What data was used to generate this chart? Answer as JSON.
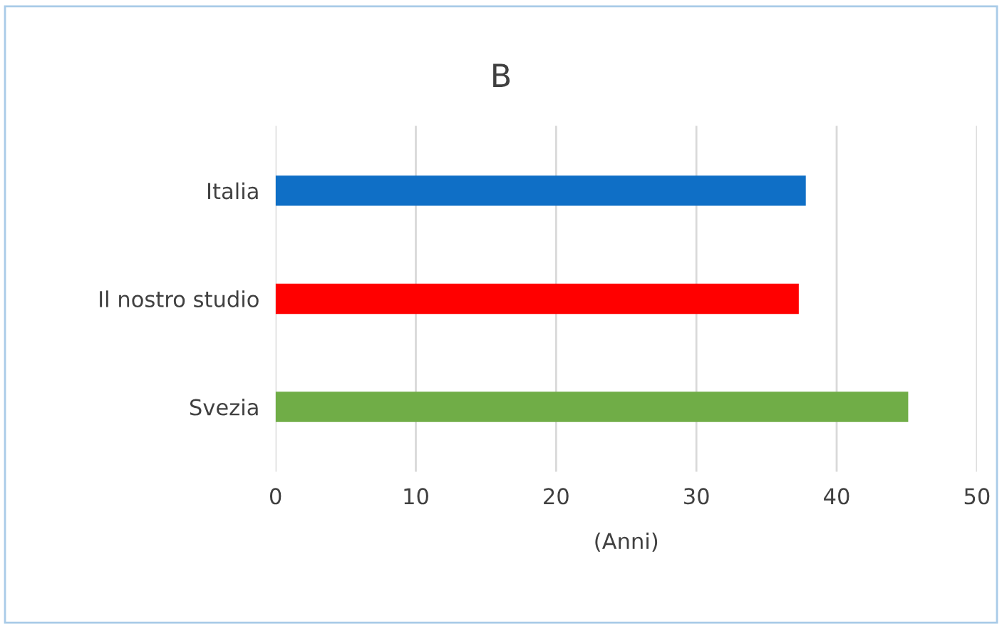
{
  "chart_data": {
    "type": "bar",
    "orientation": "horizontal",
    "title": "B",
    "xlabel": "(Anni)",
    "categories": [
      "Italia",
      "Il nostro studio",
      "Svezia"
    ],
    "values": [
      37.8,
      37.3,
      45.1
    ],
    "colors": [
      "#0f6fc6",
      "#ff0000",
      "#70ad47"
    ],
    "xlim": [
      0,
      50
    ],
    "xticks": [
      0,
      10,
      20,
      30,
      40,
      50
    ],
    "grid": "x",
    "legend": false
  }
}
